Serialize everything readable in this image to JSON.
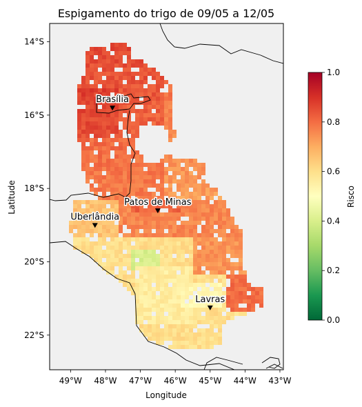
{
  "title": "Espigamento do trigo de 09/05 a 12/05",
  "xlabel": "Longitude",
  "ylabel": "Latitude",
  "x_ticks": [
    "49°W",
    "48°W",
    "47°W",
    "46°W",
    "45°W",
    "44°W",
    "43°W"
  ],
  "y_ticks": [
    "14°S",
    "16°S",
    "18°S",
    "20°S",
    "22°S"
  ],
  "colorbar": {
    "label": "Risco",
    "ticks": [
      "0.0",
      "0.2",
      "0.4",
      "0.6",
      "0.8",
      "1.0"
    ],
    "colormap": "RdYlGn_r",
    "stops": [
      "#006837",
      "#1a9850",
      "#66bd63",
      "#a6d96a",
      "#d9ef8b",
      "#ffffbf",
      "#fee08b",
      "#fdae61",
      "#f46d43",
      "#d73027",
      "#a50026"
    ]
  },
  "map": {
    "lon_range": [
      -49.6,
      -42.9
    ],
    "lat_range": [
      -23.1,
      -13.5
    ],
    "background": "#f0f0f0",
    "cities": [
      {
        "name": "Brasília",
        "lon": -47.8,
        "lat": -15.8
      },
      {
        "name": "Patos de Minas",
        "lon": -46.5,
        "lat": -18.6
      },
      {
        "name": "Uberlândia",
        "lon": -48.3,
        "lat": -19.0
      },
      {
        "name": "Lavras",
        "lon": -45.0,
        "lat": -21.25
      }
    ]
  }
}
